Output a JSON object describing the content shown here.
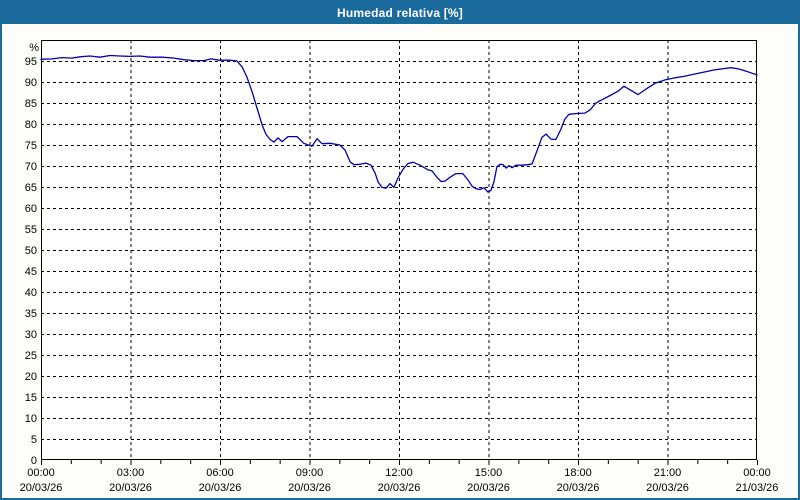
{
  "window": {
    "title": "Humedad relativa [%]"
  },
  "colors": {
    "titlebar": "#1a6a9e",
    "window_border": "#1a6a9e",
    "background": "#fdfdfa",
    "plot_background": "#ffffff",
    "grid": "#000000",
    "axis": "#000000",
    "line": "#0000b4",
    "title_text": "#ffffff"
  },
  "chart_data": {
    "type": "line",
    "title": "Humedad relativa [%]",
    "ylabel": "%",
    "xlabel": "",
    "ylim": [
      0,
      100
    ],
    "xlim_hours": [
      0,
      24
    ],
    "grid": "dashed",
    "legend": "none",
    "ytick_values": [
      0,
      5,
      10,
      15,
      20,
      25,
      30,
      35,
      40,
      45,
      50,
      55,
      60,
      65,
      70,
      75,
      80,
      85,
      90,
      95
    ],
    "xticks": [
      {
        "time": "00:00",
        "date": "20/03/26",
        "hour": 0
      },
      {
        "time": "03:00",
        "date": "20/03/26",
        "hour": 3
      },
      {
        "time": "06:00",
        "date": "20/03/26",
        "hour": 6
      },
      {
        "time": "09:00",
        "date": "20/03/26",
        "hour": 9
      },
      {
        "time": "12:00",
        "date": "20/03/26",
        "hour": 12
      },
      {
        "time": "15:00",
        "date": "20/03/26",
        "hour": 15
      },
      {
        "time": "18:00",
        "date": "20/03/26",
        "hour": 18
      },
      {
        "time": "21:00",
        "date": "20/03/26",
        "hour": 21
      },
      {
        "time": "00:00",
        "date": "21/03/26",
        "hour": 24
      }
    ],
    "minor_xtick_every_hours": 1,
    "series": [
      {
        "name": "Humedad relativa [%]",
        "x": [
          0.0,
          0.37,
          0.7,
          1.04,
          1.31,
          1.64,
          1.98,
          2.31,
          2.65,
          2.98,
          3.32,
          3.65,
          4.06,
          4.46,
          4.79,
          5.13,
          5.46,
          5.7,
          5.97,
          6.33,
          6.57,
          6.74,
          6.9,
          7.07,
          7.24,
          7.41,
          7.54,
          7.68,
          7.81,
          7.94,
          8.08,
          8.28,
          8.58,
          8.81,
          9.08,
          9.25,
          9.42,
          9.69,
          10.02,
          10.19,
          10.36,
          10.49,
          10.69,
          10.89,
          11.06,
          11.2,
          11.3,
          11.43,
          11.56,
          11.7,
          11.83,
          11.97,
          12.13,
          12.3,
          12.47,
          12.7,
          12.97,
          13.11,
          13.27,
          13.41,
          13.54,
          13.71,
          13.91,
          14.14,
          14.31,
          14.45,
          14.58,
          14.71,
          14.85,
          14.98,
          15.08,
          15.18,
          15.28,
          15.39,
          15.49,
          15.59,
          15.69,
          15.79,
          15.92,
          16.12,
          16.32,
          16.46,
          16.62,
          16.79,
          16.93,
          17.09,
          17.26,
          17.43,
          17.56,
          17.7,
          17.97,
          18.23,
          18.4,
          18.6,
          18.84,
          19.11,
          19.34,
          19.54,
          19.78,
          20.01,
          20.28,
          20.58,
          20.92,
          21.25,
          21.59,
          21.92,
          22.26,
          22.59,
          22.89,
          23.13,
          23.39,
          23.63,
          23.83,
          24.0
        ],
        "y": [
          95.4,
          95.5,
          95.8,
          95.7,
          96.0,
          96.2,
          95.9,
          96.3,
          96.2,
          96.1,
          96.2,
          95.9,
          95.9,
          95.7,
          95.3,
          95.1,
          95.1,
          95.5,
          95.2,
          95.2,
          95.0,
          93.6,
          91.2,
          87.8,
          83.8,
          79.8,
          77.6,
          76.3,
          75.7,
          76.7,
          75.8,
          77.0,
          77.0,
          75.4,
          74.7,
          76.5,
          75.3,
          75.4,
          75.0,
          73.8,
          71.0,
          70.3,
          70.4,
          70.7,
          70.2,
          68.3,
          66.2,
          64.9,
          64.7,
          65.8,
          64.9,
          67.2,
          69.2,
          70.6,
          70.9,
          70.2,
          69.1,
          68.8,
          67.3,
          66.3,
          66.4,
          67.3,
          68.2,
          68.2,
          66.7,
          65.2,
          64.6,
          64.4,
          64.8,
          63.8,
          64.2,
          66.2,
          69.8,
          70.4,
          70.3,
          69.5,
          70.1,
          69.6,
          70.2,
          70.2,
          70.3,
          70.5,
          73.5,
          76.8,
          77.6,
          76.4,
          76.3,
          78.8,
          81.2,
          82.3,
          82.5,
          82.6,
          83.3,
          85.0,
          85.9,
          86.9,
          87.8,
          89.0,
          88.0,
          87.0,
          88.3,
          89.7,
          90.5,
          91.0,
          91.4,
          91.9,
          92.4,
          92.9,
          93.2,
          93.4,
          93.1,
          92.6,
          92.1,
          91.7
        ]
      }
    ]
  }
}
